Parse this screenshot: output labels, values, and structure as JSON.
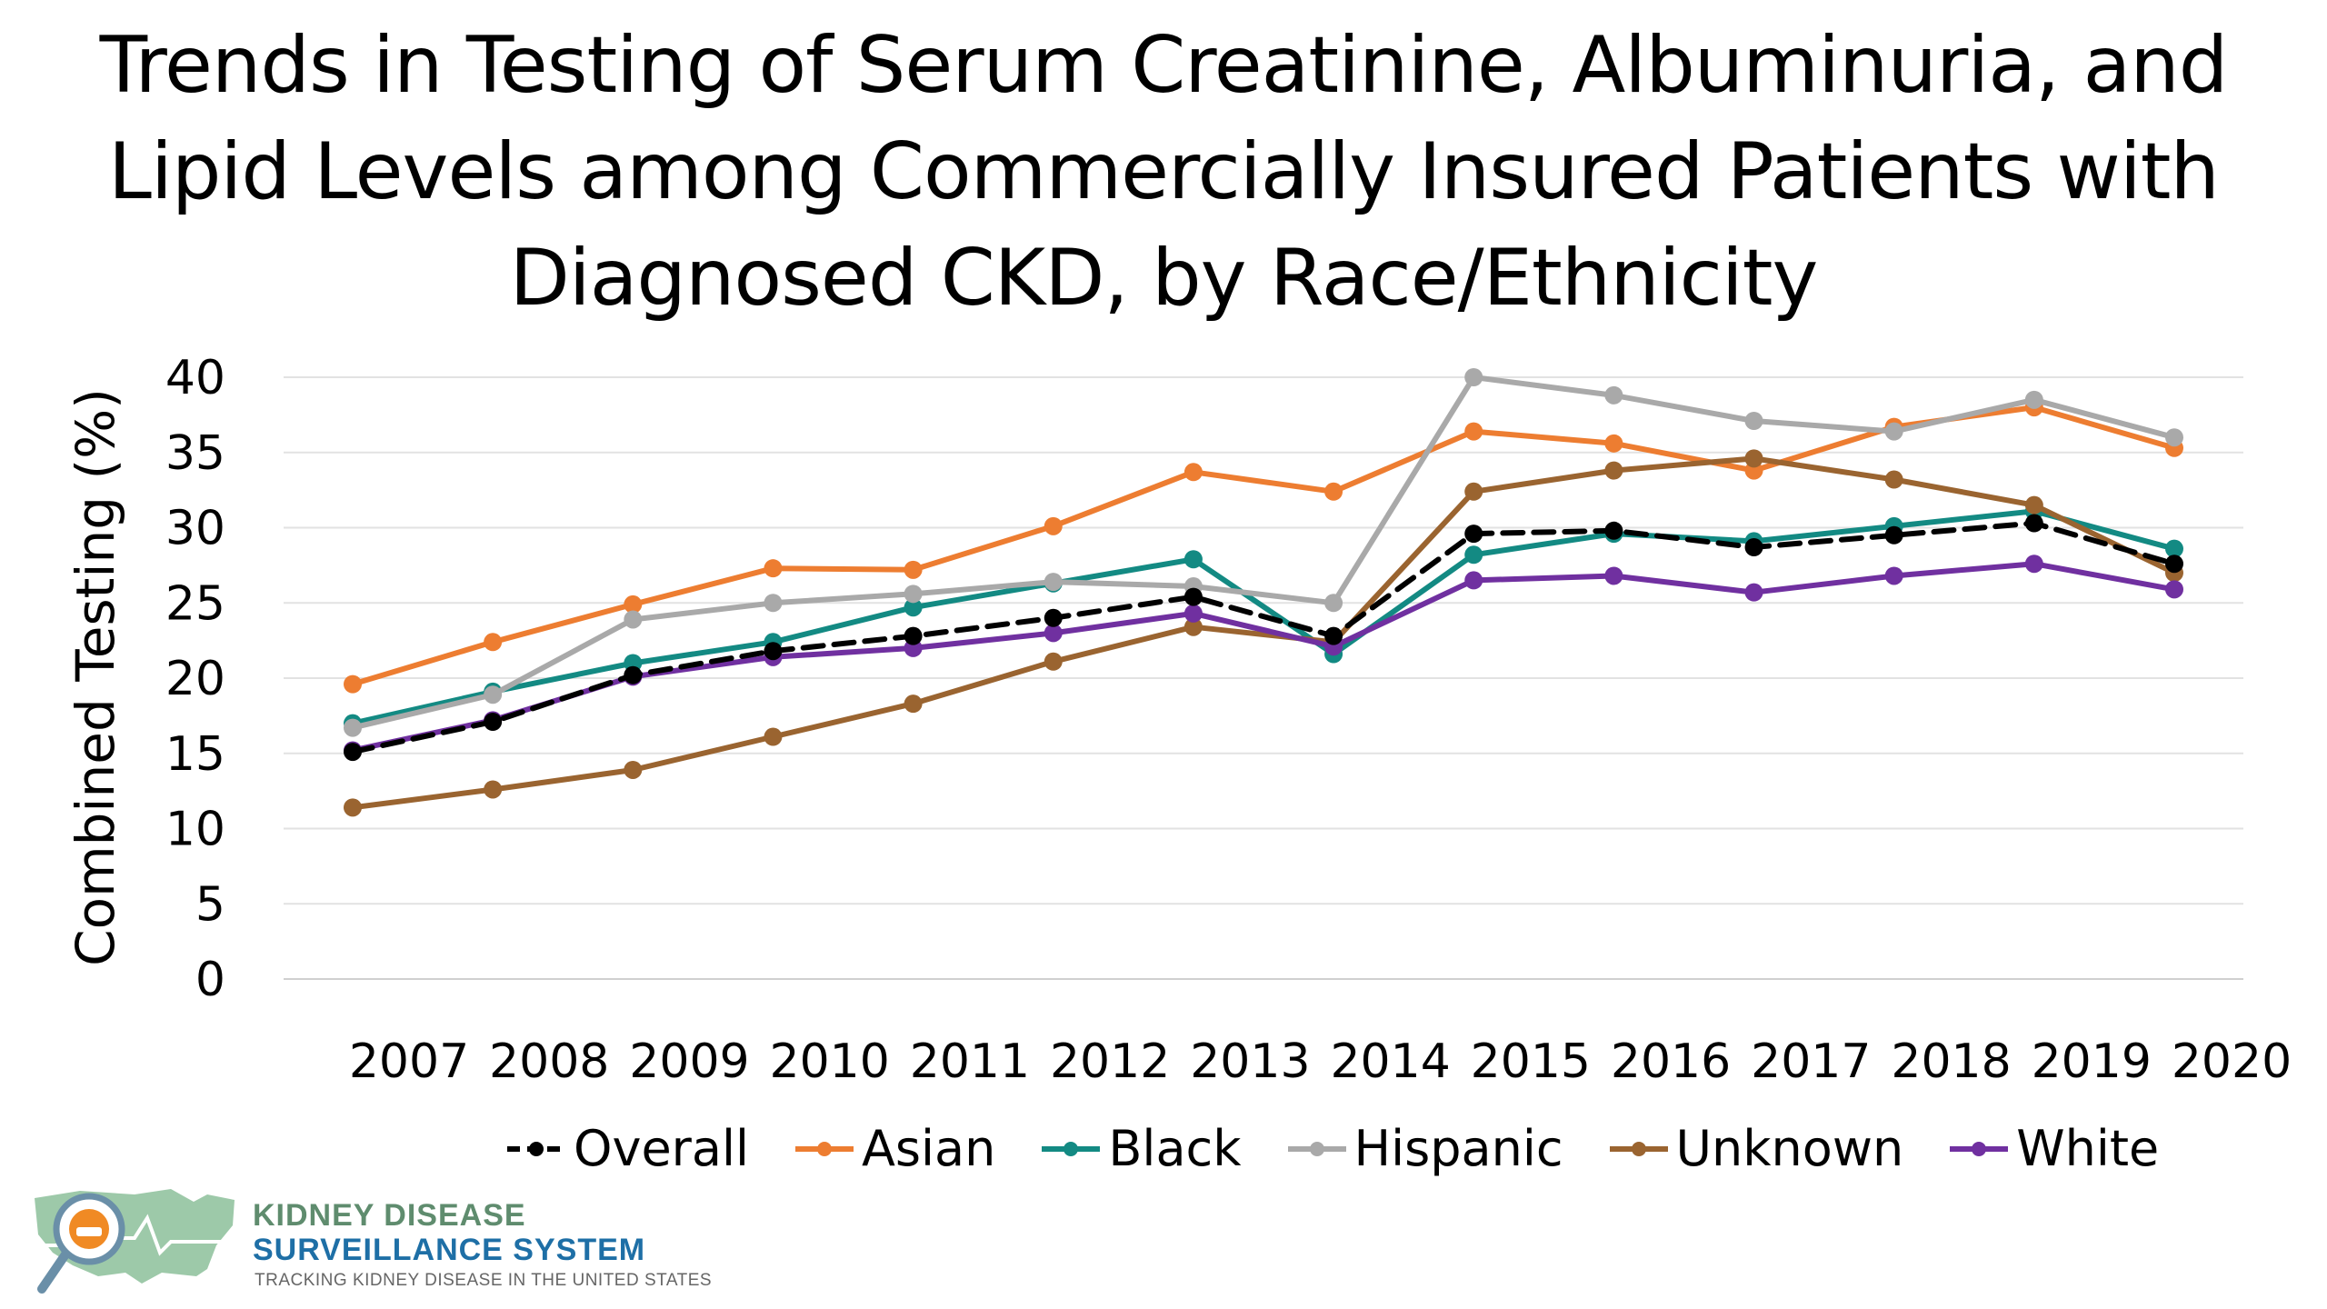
{
  "title_lines": [
    "Trends in Testing of Serum Creatinine, Albuminuria, and",
    "Lipid Levels among Commercially Insured Patients with",
    "Diagnosed CKD, by Race/Ethnicity"
  ],
  "logo": {
    "line1": "KIDNEY DISEASE",
    "line2": "SURVEILLANCE SYSTEM",
    "tagline": "TRACKING KIDNEY DISEASE IN THE UNITED STATES"
  },
  "chart_data": {
    "type": "line",
    "title": "Trends in Testing of Serum Creatinine, Albuminuria, and Lipid Levels among Commercially Insured Patients with Diagnosed CKD, by Race/Ethnicity",
    "xlabel": "",
    "ylabel": "Combined Testing (%)",
    "x_tick_labels": [
      "2007",
      "2008",
      "2009",
      "2010",
      "2011",
      "2012",
      "2013",
      "2014",
      "2015",
      "2016",
      "2017",
      "2018",
      "2019",
      "2020"
    ],
    "y_ticks": [
      0,
      5,
      10,
      15,
      20,
      25,
      30,
      35,
      40
    ],
    "ylim": [
      0,
      40
    ],
    "grid": true,
    "legend_position": "bottom",
    "series": [
      {
        "name": "Overall",
        "color": "#000000",
        "dashed": true,
        "values": [
          15.1,
          17.1,
          20.2,
          21.8,
          22.8,
          24.0,
          25.4,
          22.8,
          29.6,
          29.8,
          28.7,
          29.5,
          30.3,
          27.6
        ]
      },
      {
        "name": "Asian",
        "color": "#ed7d31",
        "dashed": false,
        "values": [
          19.6,
          22.4,
          24.9,
          27.3,
          27.2,
          30.1,
          33.7,
          32.4,
          36.4,
          35.6,
          33.8,
          36.7,
          38.0,
          35.3
        ]
      },
      {
        "name": "Black",
        "color": "#138a83",
        "dashed": false,
        "values": [
          17.0,
          19.1,
          21.0,
          22.4,
          24.7,
          26.3,
          27.9,
          21.6,
          28.2,
          29.6,
          29.1,
          30.1,
          31.1,
          28.6
        ]
      },
      {
        "name": "Hispanic",
        "color": "#a9a9a9",
        "dashed": false,
        "values": [
          16.7,
          18.9,
          23.9,
          25.0,
          25.6,
          26.4,
          26.1,
          25.0,
          40.0,
          38.8,
          37.1,
          36.4,
          38.5,
          36.0
        ]
      },
      {
        "name": "Unknown",
        "color": "#9a6430",
        "dashed": false,
        "values": [
          11.4,
          12.6,
          13.9,
          16.1,
          18.3,
          21.1,
          23.4,
          22.4,
          32.4,
          33.8,
          34.6,
          33.2,
          31.5,
          27.0
        ]
      },
      {
        "name": "White",
        "color": "#7030a0",
        "dashed": false,
        "values": [
          15.2,
          17.2,
          20.1,
          21.4,
          22.0,
          23.0,
          24.3,
          22.1,
          26.5,
          26.8,
          25.7,
          26.8,
          27.6,
          25.9
        ]
      }
    ]
  }
}
